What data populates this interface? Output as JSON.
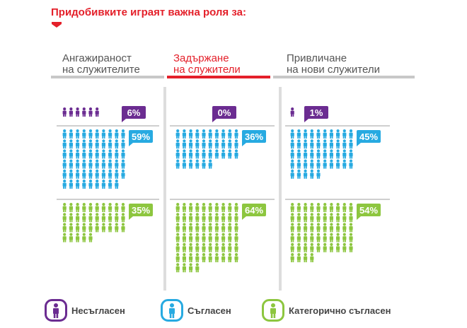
{
  "title": "Придобивките играят важна роля за:",
  "colors": {
    "title": "#e4202a",
    "disagree": "#6b2c91",
    "agree": "#27aae1",
    "strongly_agree": "#8dc63f",
    "active_tab": "#e4202a",
    "inactive_tab": "#c8c8c8"
  },
  "columns": [
    {
      "label_line1": "Ангажираност",
      "label_line2": "на служителите"
    },
    {
      "label_line1": "Задържане",
      "label_line2": "на служители"
    },
    {
      "label_line1": "Привличане",
      "label_line2": "на нови служители"
    }
  ],
  "legend": [
    {
      "label": "Несъгласен",
      "icon": "person-icon",
      "color": "#6b2c91"
    },
    {
      "label": "Съгласен",
      "icon": "person-icon",
      "color": "#27aae1"
    },
    {
      "label": "Категорично съгласен",
      "icon": "person-icon",
      "color": "#8dc63f"
    }
  ],
  "chart_data": {
    "type": "pictogram",
    "categories": [
      "Ангажираност на служителите",
      "Задържане на служители",
      "Привличане на нови служители"
    ],
    "series": [
      {
        "name": "Несъгласен",
        "values": [
          6,
          0,
          1
        ],
        "labels": [
          "6%",
          "0%",
          "1%"
        ]
      },
      {
        "name": "Съгласен",
        "values": [
          59,
          36,
          45
        ],
        "labels": [
          "59%",
          "36%",
          "45%"
        ]
      },
      {
        "name": "Категорично съгласен",
        "values": [
          35,
          64,
          54
        ],
        "labels": [
          "35%",
          "64%",
          "54%"
        ]
      }
    ],
    "unit": "%"
  }
}
